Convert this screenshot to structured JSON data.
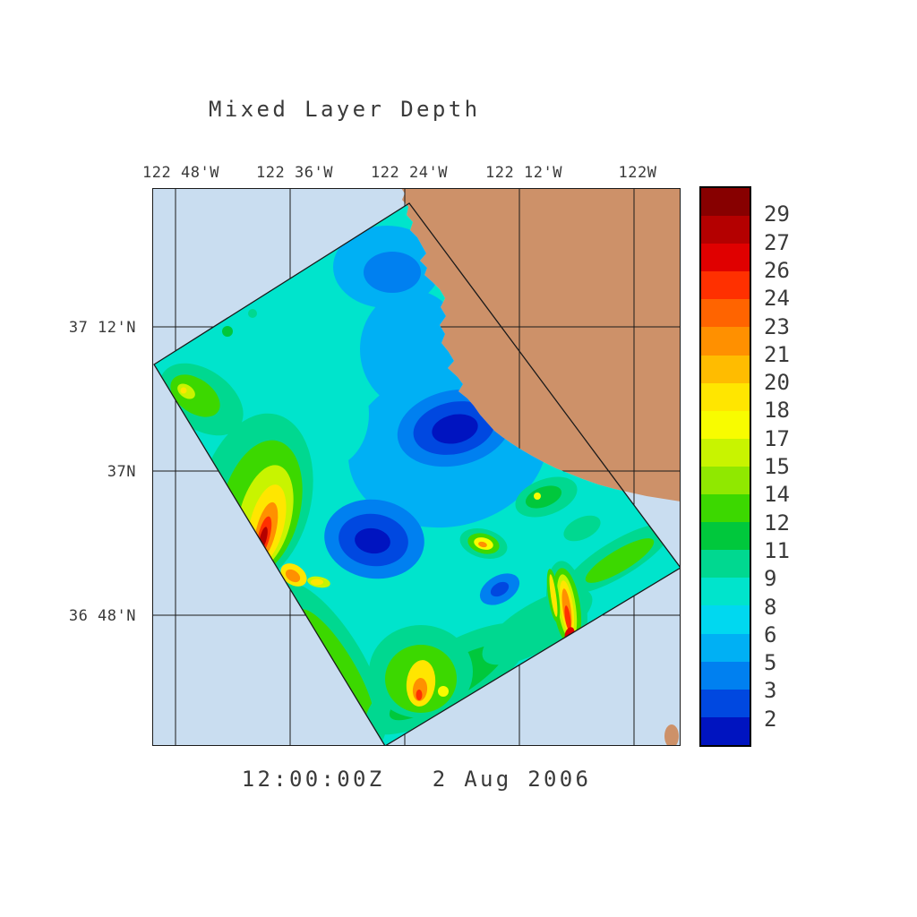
{
  "title": "Mixed Layer Depth",
  "footer": {
    "timestamp": "12:00:00Z   2 Aug 2006"
  },
  "axes": {
    "top_labels": [
      "122 48'W",
      "122 36'W",
      "122 24'W",
      "122 12'W",
      "122W"
    ],
    "left_labels": [
      "37 12'N",
      "37N",
      "36 48'N"
    ]
  },
  "colorbar": {
    "labels": [
      "29",
      "27",
      "26",
      "24",
      "23",
      "21",
      "20",
      "18",
      "17",
      "15",
      "14",
      "12",
      "11",
      "9",
      "8",
      "6",
      "5",
      "3",
      "2"
    ],
    "colors": [
      "#870000",
      "#b40000",
      "#e00000",
      "#ff3000",
      "#ff6400",
      "#ff9000",
      "#ffbc00",
      "#ffe600",
      "#f8fc00",
      "#c8f400",
      "#90e800",
      "#3cd800",
      "#00c83c",
      "#00d890",
      "#00e4cc",
      "#00d8f0",
      "#00b0f4",
      "#0080f0",
      "#0048e0",
      "#0014c0"
    ]
  },
  "map": {
    "ocean_color": "#c9ddf0",
    "land_color": "#cd9169",
    "outline_color": "#1a1a1a"
  },
  "chart_data": {
    "type": "heatmap",
    "title": "Mixed Layer Depth",
    "timestamp": "12:00:00Z 2 Aug 2006",
    "x_tick_labels": [
      "122 48'W",
      "122 36'W",
      "122 24'W",
      "122 12'W",
      "122W"
    ],
    "y_tick_labels": [
      "37 12'N",
      "37N",
      "36 48'N"
    ],
    "colorbar_tick_values": [
      29,
      27,
      26,
      24,
      23,
      21,
      20,
      18,
      17,
      15,
      14,
      12,
      11,
      9,
      8,
      6,
      5,
      3,
      2
    ],
    "value_range": [
      2,
      29
    ],
    "legend_position": "right",
    "grid": true,
    "notes": "Filled-contour mixed layer depth field inside a rotated rectangular model domain off the Monterey Bay coast; shallow (red, ~25-29) patches near the western edge and southeast corner of the domain, deep-blue (~2-5) pools in the domain center; land shown tan, ocean background pale blue."
  }
}
